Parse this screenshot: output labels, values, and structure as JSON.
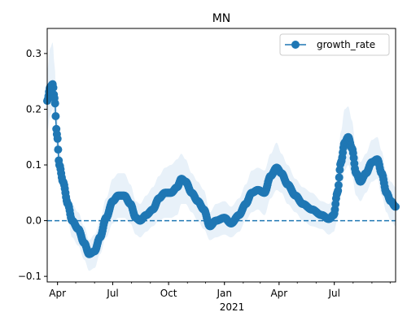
{
  "chart_data": {
    "type": "line",
    "title": "MN",
    "xlabel": "",
    "ylabel": "",
    "x_type": "date",
    "xlim": [
      "2020-03-15",
      "2021-10-10"
    ],
    "ylim": [
      -0.11,
      0.345
    ],
    "x_ticks": [
      {
        "date": "2020-04-01",
        "label": "Apr"
      },
      {
        "date": "2020-07-01",
        "label": "Jul"
      },
      {
        "date": "2020-10-01",
        "label": "Oct"
      },
      {
        "date": "2021-01-01",
        "label": "Jan"
      },
      {
        "date": "2021-04-01",
        "label": "Apr"
      },
      {
        "date": "2021-07-01",
        "label": "Jul"
      }
    ],
    "x_secondary_label": "2021",
    "y_ticks": [
      -0.1,
      0.0,
      0.1,
      0.2,
      0.3
    ],
    "y_tick_labels": [
      "−0.1",
      "0.0",
      "0.1",
      "0.2",
      "0.3"
    ],
    "reference_line": {
      "y": 0.0,
      "style": "dashed",
      "color": "#1f77b4"
    },
    "legend": {
      "position": "top-right",
      "entries": [
        {
          "label": "growth_rate",
          "marker": "circle",
          "color": "#1f77b4"
        }
      ]
    },
    "grid": false,
    "series": [
      {
        "name": "growth_rate",
        "color": "#1f77b4",
        "marker": "circle",
        "band_color": "#d6e6f4",
        "keypoints": [
          {
            "x": "2020-03-15",
            "y": 0.215,
            "lo": 0.16,
            "hi": 0.27
          },
          {
            "x": "2020-03-20",
            "y": 0.24,
            "lo": 0.19,
            "hi": 0.31
          },
          {
            "x": "2020-03-24",
            "y": 0.245,
            "lo": 0.2,
            "hi": 0.32
          },
          {
            "x": "2020-03-27",
            "y": 0.22,
            "lo": 0.18,
            "hi": 0.28
          },
          {
            "x": "2020-03-31",
            "y": 0.155,
            "lo": 0.12,
            "hi": 0.2
          },
          {
            "x": "2020-04-04",
            "y": 0.1,
            "lo": 0.07,
            "hi": 0.13
          },
          {
            "x": "2020-04-10",
            "y": 0.07,
            "lo": 0.04,
            "hi": 0.1
          },
          {
            "x": "2020-04-18",
            "y": 0.03,
            "lo": 0.0,
            "hi": 0.06
          },
          {
            "x": "2020-04-25",
            "y": 0.0,
            "lo": -0.03,
            "hi": 0.03
          },
          {
            "x": "2020-05-05",
            "y": -0.015,
            "lo": -0.045,
            "hi": 0.015
          },
          {
            "x": "2020-05-15",
            "y": -0.04,
            "lo": -0.07,
            "hi": -0.01
          },
          {
            "x": "2020-05-23",
            "y": -0.06,
            "lo": -0.09,
            "hi": -0.035
          },
          {
            "x": "2020-06-01",
            "y": -0.055,
            "lo": -0.085,
            "hi": -0.025
          },
          {
            "x": "2020-06-10",
            "y": -0.03,
            "lo": -0.06,
            "hi": 0.0
          },
          {
            "x": "2020-06-20",
            "y": 0.005,
            "lo": -0.03,
            "hi": 0.04
          },
          {
            "x": "2020-07-01",
            "y": 0.035,
            "lo": -0.005,
            "hi": 0.075
          },
          {
            "x": "2020-07-10",
            "y": 0.045,
            "lo": 0.005,
            "hi": 0.085
          },
          {
            "x": "2020-07-20",
            "y": 0.045,
            "lo": 0.005,
            "hi": 0.085
          },
          {
            "x": "2020-07-30",
            "y": 0.03,
            "lo": -0.005,
            "hi": 0.065
          },
          {
            "x": "2020-08-08",
            "y": 0.005,
            "lo": -0.025,
            "hi": 0.035
          },
          {
            "x": "2020-08-15",
            "y": 0.0,
            "lo": -0.03,
            "hi": 0.03
          },
          {
            "x": "2020-08-25",
            "y": 0.01,
            "lo": -0.02,
            "hi": 0.045
          },
          {
            "x": "2020-09-05",
            "y": 0.02,
            "lo": -0.01,
            "hi": 0.06
          },
          {
            "x": "2020-09-15",
            "y": 0.04,
            "lo": 0.0,
            "hi": 0.08
          },
          {
            "x": "2020-09-25",
            "y": 0.05,
            "lo": 0.005,
            "hi": 0.095
          },
          {
            "x": "2020-10-05",
            "y": 0.05,
            "lo": 0.005,
            "hi": 0.1
          },
          {
            "x": "2020-10-15",
            "y": 0.06,
            "lo": 0.01,
            "hi": 0.11
          },
          {
            "x": "2020-10-22",
            "y": 0.075,
            "lo": 0.03,
            "hi": 0.12
          },
          {
            "x": "2020-10-29",
            "y": 0.07,
            "lo": 0.03,
            "hi": 0.11
          },
          {
            "x": "2020-11-08",
            "y": 0.05,
            "lo": 0.015,
            "hi": 0.085
          },
          {
            "x": "2020-11-18",
            "y": 0.035,
            "lo": 0.0,
            "hi": 0.07
          },
          {
            "x": "2020-11-28",
            "y": 0.02,
            "lo": -0.015,
            "hi": 0.055
          },
          {
            "x": "2020-12-08",
            "y": -0.01,
            "lo": -0.035,
            "hi": 0.015
          },
          {
            "x": "2020-12-18",
            "y": 0.0,
            "lo": -0.03,
            "hi": 0.03
          },
          {
            "x": "2021-01-01",
            "y": 0.005,
            "lo": -0.025,
            "hi": 0.035
          },
          {
            "x": "2021-01-12",
            "y": -0.005,
            "lo": -0.03,
            "hi": 0.025
          },
          {
            "x": "2021-01-25",
            "y": 0.01,
            "lo": -0.02,
            "hi": 0.04
          },
          {
            "x": "2021-02-05",
            "y": 0.03,
            "lo": 0.0,
            "hi": 0.065
          },
          {
            "x": "2021-02-15",
            "y": 0.05,
            "lo": 0.015,
            "hi": 0.09
          },
          {
            "x": "2021-02-25",
            "y": 0.055,
            "lo": 0.02,
            "hi": 0.095
          },
          {
            "x": "2021-03-08",
            "y": 0.05,
            "lo": 0.01,
            "hi": 0.09
          },
          {
            "x": "2021-03-18",
            "y": 0.08,
            "lo": 0.04,
            "hi": 0.12
          },
          {
            "x": "2021-03-28",
            "y": 0.095,
            "lo": 0.055,
            "hi": 0.14
          },
          {
            "x": "2021-04-05",
            "y": 0.085,
            "lo": 0.05,
            "hi": 0.12
          },
          {
            "x": "2021-04-15",
            "y": 0.065,
            "lo": 0.03,
            "hi": 0.1
          },
          {
            "x": "2021-04-28",
            "y": 0.045,
            "lo": 0.015,
            "hi": 0.075
          },
          {
            "x": "2021-05-10",
            "y": 0.03,
            "lo": 0.0,
            "hi": 0.06
          },
          {
            "x": "2021-05-25",
            "y": 0.02,
            "lo": -0.01,
            "hi": 0.05
          },
          {
            "x": "2021-06-10",
            "y": 0.01,
            "lo": -0.015,
            "hi": 0.035
          },
          {
            "x": "2021-06-22",
            "y": 0.003,
            "lo": -0.025,
            "hi": 0.03
          },
          {
            "x": "2021-06-30",
            "y": 0.01,
            "lo": -0.02,
            "hi": 0.04
          },
          {
            "x": "2021-07-06",
            "y": 0.05,
            "lo": 0.0,
            "hi": 0.1
          },
          {
            "x": "2021-07-12",
            "y": 0.105,
            "lo": 0.05,
            "hi": 0.16
          },
          {
            "x": "2021-07-18",
            "y": 0.14,
            "lo": 0.09,
            "hi": 0.2
          },
          {
            "x": "2021-07-24",
            "y": 0.15,
            "lo": 0.1,
            "hi": 0.205
          },
          {
            "x": "2021-07-30",
            "y": 0.13,
            "lo": 0.08,
            "hi": 0.18
          },
          {
            "x": "2021-08-06",
            "y": 0.085,
            "lo": 0.045,
            "hi": 0.125
          },
          {
            "x": "2021-08-13",
            "y": 0.07,
            "lo": 0.035,
            "hi": 0.105
          },
          {
            "x": "2021-08-22",
            "y": 0.085,
            "lo": 0.05,
            "hi": 0.12
          },
          {
            "x": "2021-09-01",
            "y": 0.105,
            "lo": 0.07,
            "hi": 0.145
          },
          {
            "x": "2021-09-10",
            "y": 0.11,
            "lo": 0.075,
            "hi": 0.15
          },
          {
            "x": "2021-09-17",
            "y": 0.085,
            "lo": 0.045,
            "hi": 0.125
          },
          {
            "x": "2021-09-25",
            "y": 0.05,
            "lo": 0.015,
            "hi": 0.085
          },
          {
            "x": "2021-10-02",
            "y": 0.035,
            "lo": 0.0,
            "hi": 0.07
          },
          {
            "x": "2021-10-10",
            "y": 0.025,
            "lo": -0.01,
            "hi": 0.06
          }
        ]
      }
    ]
  }
}
